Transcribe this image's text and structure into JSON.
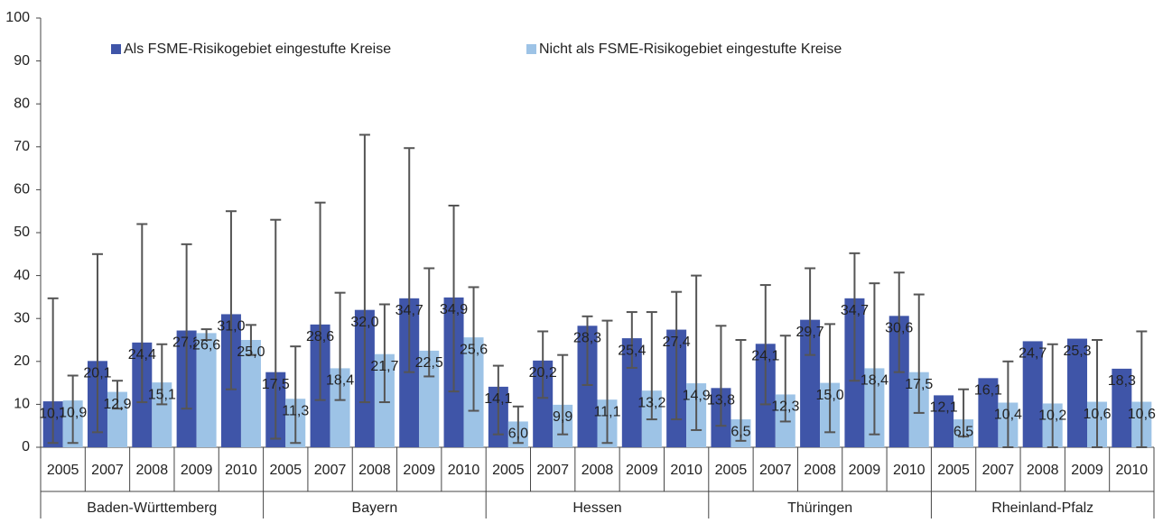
{
  "chart_data": {
    "type": "bar",
    "categories": [
      "2005",
      "2007",
      "2008",
      "2009",
      "2010",
      "2005",
      "2007",
      "2008",
      "2009",
      "2010",
      "2005",
      "2007",
      "2008",
      "2009",
      "2010",
      "2005",
      "2007",
      "2008",
      "2009",
      "2010",
      "2005",
      "2007",
      "2008",
      "2009",
      "2010"
    ],
    "groups": [
      "Baden-Württemberg",
      "Bayern",
      "Hessen",
      "Thüringen",
      "Rheinland-Pfalz"
    ],
    "series": [
      {
        "name": "Als FSME-Risikogebiet eingestufte Kreise",
        "color": "#3f55a8",
        "values": [
          10.7,
          20.1,
          24.4,
          27.2,
          31.0,
          17.5,
          28.6,
          32.0,
          34.7,
          34.9,
          14.1,
          20.2,
          28.3,
          25.4,
          27.4,
          13.8,
          24.1,
          29.7,
          34.7,
          30.6,
          12.1,
          16.1,
          24.7,
          25.3,
          18.3
        ],
        "value_labels": [
          "10,7",
          "20,1",
          "24,4",
          "27,2",
          "31,0",
          "17,5",
          "28,6",
          "32,0",
          "34,7",
          "34,9",
          "14,1",
          "20,2",
          "28,3",
          "25,4",
          "27,4",
          "13,8",
          "24,1",
          "29,7",
          "34,7",
          "30,6",
          "12,1",
          "16,1",
          "24,7",
          "25,3",
          "18,3"
        ],
        "lower": [
          1,
          3.5,
          10.5,
          9,
          13.5,
          2,
          11,
          10.5,
          17.5,
          13,
          3,
          11.5,
          14.5,
          18.5,
          6.5,
          5,
          10,
          21.5,
          15.5,
          17.5,
          null,
          null,
          null,
          null,
          null
        ],
        "upper": [
          34.7,
          45,
          52,
          47.3,
          55,
          53,
          57,
          72.8,
          69.7,
          56.3,
          19,
          27,
          30.5,
          31.5,
          36.2,
          28.3,
          37.8,
          41.7,
          45.2,
          40.7,
          null,
          null,
          null,
          null,
          null
        ]
      },
      {
        "name": "Nicht als FSME-Risikogebiet eingestufte Kreise",
        "color": "#9dc3e6",
        "values": [
          10.9,
          12.9,
          15.1,
          26.6,
          25.0,
          11.3,
          18.4,
          21.7,
          22.5,
          25.6,
          6.0,
          9.9,
          11.1,
          13.2,
          14.9,
          6.5,
          12.3,
          15.0,
          18.4,
          17.5,
          6.5,
          10.4,
          10.2,
          10.6,
          10.6
        ],
        "value_labels": [
          "10,9",
          "12,9",
          "15,1",
          "26,6",
          "25,0",
          "11,3",
          "18,4",
          "21,7",
          "22,5",
          "25,6",
          "6,0",
          "9,9",
          "11,1",
          "13,2",
          "14,9",
          "6,5",
          "12,3",
          "15,0",
          "18,4",
          "17,5",
          "6,5",
          "10,4",
          "10,2",
          "10,6",
          "10,6"
        ],
        "lower": [
          1,
          9,
          10,
          25,
          21.5,
          1,
          11,
          10.5,
          16.5,
          8.5,
          1,
          3,
          1,
          6.5,
          4,
          1.5,
          6,
          3.5,
          3,
          8,
          2.5,
          0,
          0,
          0,
          0
        ],
        "upper": [
          16.7,
          15.5,
          24,
          27.5,
          28.5,
          23.5,
          36,
          33.3,
          41.7,
          37.3,
          9.5,
          21.5,
          29.5,
          31.5,
          40,
          25,
          26,
          28.7,
          38.2,
          35.6,
          13.5,
          20,
          24,
          25,
          27
        ]
      }
    ],
    "ylim": [
      0,
      100
    ],
    "yticks": [
      0,
      10,
      20,
      30,
      40,
      50,
      60,
      70,
      80,
      90,
      100
    ],
    "legend": "top-left"
  }
}
